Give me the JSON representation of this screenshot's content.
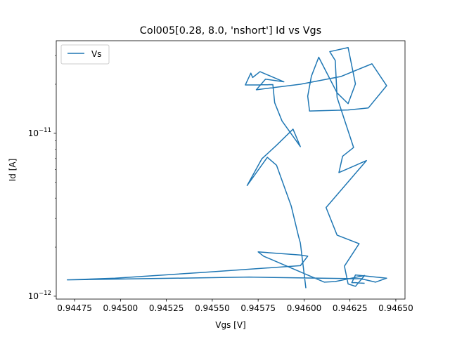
{
  "chart_data": {
    "type": "line",
    "title": "Col005[0.28, 8.0, 'nshort'] Id vs Vgs",
    "xlabel": "Vgs [V]",
    "ylabel": "Id [A]",
    "xlim": [
      0.94465,
      0.94655
    ],
    "ylim": [
      9.6e-13,
      3.7e-11
    ],
    "yscale": "log",
    "grid": false,
    "legend_position": "upper-left",
    "x_ticks": [
      {
        "value": 0.94475,
        "label": "0.94475"
      },
      {
        "value": 0.945,
        "label": "0.94500"
      },
      {
        "value": 0.94525,
        "label": "0.94525"
      },
      {
        "value": 0.9455,
        "label": "0.94550"
      },
      {
        "value": 0.94575,
        "label": "0.94575"
      },
      {
        "value": 0.946,
        "label": "0.94600"
      },
      {
        "value": 0.94625,
        "label": "0.94625"
      },
      {
        "value": 0.9465,
        "label": "0.94650"
      }
    ],
    "y_ticks": [
      {
        "value": 1e-12,
        "base": "10",
        "exp": "−12"
      },
      {
        "value": 1e-11,
        "base": "10",
        "exp": "−11"
      }
    ],
    "series": [
      {
        "name": "Vs",
        "color": "#1f77b4",
        "x": [
          0.94601,
          0.94598,
          0.94597,
          0.94593,
          0.94585,
          0.9458,
          0.94569,
          0.94577,
          0.94585,
          0.94594,
          0.94598,
          0.94588,
          0.94584,
          0.94583,
          0.94568,
          0.94571,
          0.94572,
          0.94576,
          0.94589,
          0.94579,
          0.94574,
          0.94598,
          0.9462,
          0.94637,
          0.94645,
          0.94635,
          0.94624,
          0.94603,
          0.94602,
          0.94604,
          0.94608,
          0.94618,
          0.94624,
          0.94628,
          0.94624,
          0.94614,
          0.94617,
          0.94618,
          0.94627,
          0.94621,
          0.94619,
          0.94634,
          0.94612,
          0.94618,
          0.9463,
          0.94622,
          0.94624,
          0.94628,
          0.94633,
          0.94617,
          0.94611,
          0.94578,
          0.94575,
          0.94589,
          0.94598,
          0.94602,
          0.94598,
          0.94545,
          0.94497,
          0.94471,
          0.9457,
          0.94631,
          0.94639,
          0.94645,
          0.94628,
          0.94626,
          0.94628,
          0.94633
        ]
      }
    ]
  }
}
